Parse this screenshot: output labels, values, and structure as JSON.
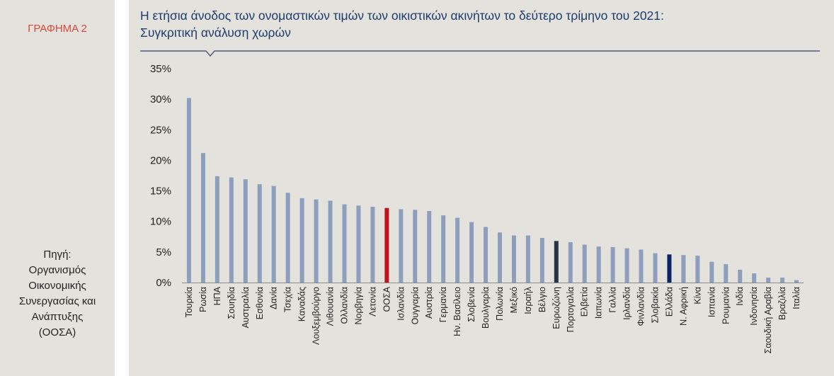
{
  "figure": {
    "label": "ΓΡΑΦΗΜΑ 2",
    "title_lines": [
      "Η ετήσια άνοδος των ονομαστικών τιμών των οικιστικών ακινήτων το δεύτερο τρίμηνο του 2021:",
      "Συγκριτική ανάλυση χωρών"
    ],
    "source_lines": [
      "Πηγή:",
      "Οργανισμός",
      "Οικονομικής",
      "Συνεργασίας και",
      "Ανάπτυξης",
      "(ΟΟΣΑ)"
    ]
  },
  "colors": {
    "default": "#8e9fbe",
    "oecd": "#c0141c",
    "eurozone": "#283347",
    "greece": "#0b2466",
    "title": "#1f3b6e",
    "label": "#e0473a"
  },
  "chart_data": {
    "type": "bar",
    "title": "Η ετήσια άνοδος των ονομαστικών τιμών των οικιστικών ακινήτων το δεύτερο τρίμηνο του 2021: Συγκριτική ανάλυση χωρών",
    "xlabel": "",
    "ylabel": "",
    "ylim": [
      0,
      35
    ],
    "yticks": [
      0,
      5,
      10,
      15,
      20,
      25,
      30,
      35
    ],
    "ytick_labels": [
      "0%",
      "5%",
      "10%",
      "15%",
      "20%",
      "25%",
      "30%",
      "35%"
    ],
    "grid": false,
    "legend": "none",
    "categories": [
      "Τουρκία",
      "Ρωσία",
      "ΗΠΑ",
      "Σουηδία",
      "Αυστραλία",
      "Εσθονία",
      "Δανία",
      "Τσεχία",
      "Καναδάς",
      "Λουξεμβούργο",
      "Λιθουανία",
      "Ολλανδία",
      "Νορβηγία",
      "Λετονία",
      "ΟΟΣΑ",
      "Ισλανδία",
      "Ουγγαρία",
      "Αυστρία",
      "Γερμανία",
      "Ην. Βασίλειο",
      "Σλοβενία",
      "Βουλγαρία",
      "Πολωνία",
      "Μεξικό",
      "Ισραήλ",
      "Βέλγιο",
      "Ευρωζώνη",
      "Πορτογαλία",
      "Ελβετία",
      "Ιαπωνία",
      "Γαλλία",
      "Ιρλανδία",
      "Φινλανδία",
      "Σλοβακία",
      "Ελλάδα",
      "Ν. Αφρική",
      "Κίνα",
      "Ισπανία",
      "Ρουμανία",
      "Ινδία",
      "Ινδονησία",
      "Σαουδική Αραβία",
      "Βραζιλία",
      "Ιταλία"
    ],
    "values": [
      30.2,
      21.2,
      17.4,
      17.2,
      16.9,
      16.1,
      15.8,
      14.7,
      13.8,
      13.6,
      13.4,
      12.8,
      12.6,
      12.4,
      12.2,
      12.0,
      11.9,
      11.7,
      11.0,
      10.6,
      9.9,
      9.1,
      8.2,
      7.7,
      7.7,
      7.3,
      6.8,
      6.6,
      6.2,
      5.9,
      5.8,
      5.6,
      5.4,
      4.8,
      4.6,
      4.5,
      4.4,
      3.4,
      3.0,
      2.1,
      1.5,
      0.8,
      0.8,
      0.4
    ],
    "highlights": {
      "ΟΟΣΑ": "oecd",
      "Ευρωζώνη": "eurozone",
      "Ελλάδα": "greece"
    }
  }
}
